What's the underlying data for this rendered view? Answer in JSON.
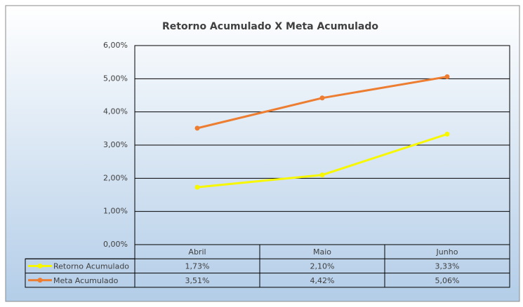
{
  "chart_data": {
    "type": "line",
    "title": "Retorno Acumulado X Meta Acumulado",
    "categories": [
      "Abril",
      "Maio",
      "Junho"
    ],
    "series": [
      {
        "name": "Retorno Acumulado",
        "color": "#f7f700",
        "values": [
          1.73,
          2.1,
          3.33
        ],
        "value_labels": [
          "1,73%",
          "2,10%",
          "3,33%"
        ]
      },
      {
        "name": "Meta Acumulado",
        "color": "#ed7d31",
        "values": [
          3.51,
          4.42,
          5.06
        ],
        "value_labels": [
          "3,51%",
          "4,42%",
          "5,06%"
        ]
      }
    ],
    "ylim": [
      0,
      6
    ],
    "yticks": [
      {
        "value": 0,
        "label": "0,00%"
      },
      {
        "value": 1,
        "label": "1,00%"
      },
      {
        "value": 2,
        "label": "2,00%"
      },
      {
        "value": 3,
        "label": "3,00%"
      },
      {
        "value": 4,
        "label": "4,00%"
      },
      {
        "value": 5,
        "label": "5,00%"
      },
      {
        "value": 6,
        "label": "6,00%"
      }
    ],
    "grid": true,
    "data_table": true
  }
}
